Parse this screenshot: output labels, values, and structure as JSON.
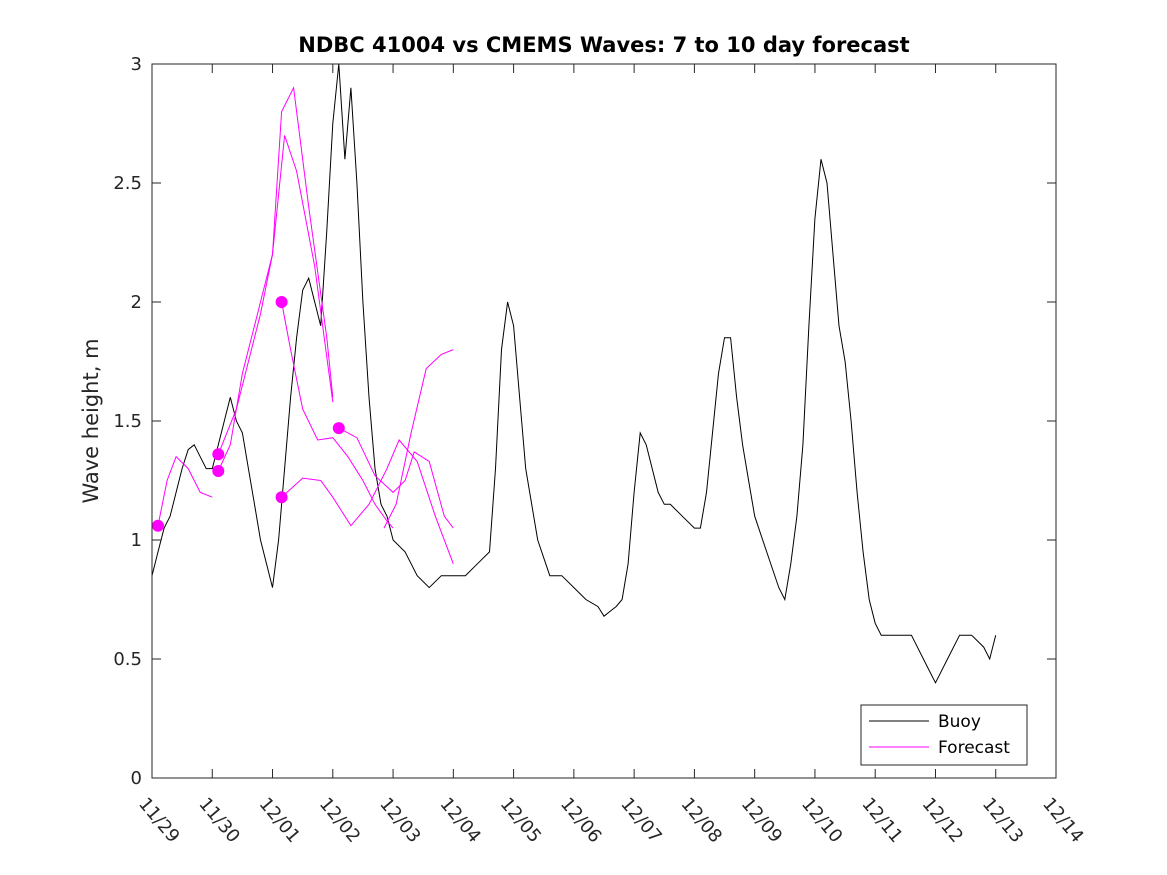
{
  "chart_data": {
    "type": "line",
    "title": "NDBC 41004 vs CMEMS Waves: 7 to 10 day forecast",
    "xlabel": "",
    "ylabel": "Wave height, m",
    "xlim": [
      0,
      15
    ],
    "ylim": [
      0,
      3
    ],
    "x_ticks": [
      0,
      1,
      2,
      3,
      4,
      5,
      6,
      7,
      8,
      9,
      10,
      11,
      12,
      13,
      14,
      15
    ],
    "x_tick_labels": [
      "11/29",
      "11/30",
      "12/01",
      "12/02",
      "12/03",
      "12/04",
      "12/05",
      "12/06",
      "12/07",
      "12/08",
      "12/09",
      "12/10",
      "12/11",
      "12/12",
      "12/13",
      "12/14"
    ],
    "y_ticks": [
      0,
      0.5,
      1,
      1.5,
      2,
      2.5,
      3
    ],
    "y_tick_labels": [
      "0",
      "0.5",
      "1",
      "1.5",
      "2",
      "2.5",
      "3"
    ],
    "legend": {
      "position": "bottom-right",
      "entries": [
        "Buoy",
        "Forecast"
      ]
    },
    "colors": {
      "buoy": "#000000",
      "forecast": "#ff00ff"
    },
    "series": [
      {
        "name": "Buoy",
        "color": "#000000",
        "x": [
          0,
          0.1,
          0.2,
          0.3,
          0.4,
          0.5,
          0.6,
          0.7,
          0.8,
          0.9,
          1.0,
          1.1,
          1.2,
          1.3,
          1.4,
          1.5,
          1.6,
          1.7,
          1.8,
          1.9,
          2.0,
          2.1,
          2.2,
          2.3,
          2.4,
          2.5,
          2.6,
          2.7,
          2.8,
          2.9,
          3.0,
          3.1,
          3.2,
          3.3,
          3.4,
          3.5,
          3.6,
          3.7,
          3.8,
          3.9,
          4.0,
          4.2,
          4.4,
          4.6,
          4.8,
          5.0,
          5.2,
          5.4,
          5.6,
          5.7,
          5.8,
          5.9,
          6.0,
          6.1,
          6.2,
          6.4,
          6.6,
          6.8,
          7.0,
          7.2,
          7.4,
          7.5,
          7.6,
          7.7,
          7.8,
          7.9,
          8.0,
          8.1,
          8.2,
          8.3,
          8.4,
          8.5,
          8.6,
          8.8,
          9.0,
          9.1,
          9.2,
          9.3,
          9.4,
          9.5,
          9.6,
          9.7,
          9.8,
          9.9,
          10.0,
          10.2,
          10.4,
          10.5,
          10.6,
          10.7,
          10.8,
          10.9,
          11.0,
          11.1,
          11.2,
          11.3,
          11.4,
          11.5,
          11.6,
          11.7,
          11.8,
          11.9,
          12.0,
          12.1,
          12.2,
          12.4,
          12.6,
          12.8,
          12.9,
          13.0,
          13.2,
          13.4,
          13.6,
          13.8,
          13.9,
          14.0
        ],
        "values": [
          0.85,
          0.95,
          1.05,
          1.1,
          1.2,
          1.3,
          1.38,
          1.4,
          1.35,
          1.3,
          1.3,
          1.4,
          1.5,
          1.6,
          1.5,
          1.45,
          1.3,
          1.15,
          1.0,
          0.9,
          0.8,
          1.0,
          1.3,
          1.6,
          1.85,
          2.05,
          2.1,
          2.0,
          1.9,
          2.3,
          2.75,
          3.0,
          2.6,
          2.9,
          2.5,
          2.0,
          1.6,
          1.3,
          1.15,
          1.1,
          1.0,
          0.95,
          0.85,
          0.8,
          0.85,
          0.85,
          0.85,
          0.9,
          0.95,
          1.3,
          1.8,
          2.0,
          1.9,
          1.6,
          1.3,
          1.0,
          0.85,
          0.85,
          0.8,
          0.75,
          0.72,
          0.68,
          0.7,
          0.72,
          0.75,
          0.9,
          1.2,
          1.45,
          1.4,
          1.3,
          1.2,
          1.15,
          1.15,
          1.1,
          1.05,
          1.05,
          1.2,
          1.45,
          1.7,
          1.85,
          1.85,
          1.6,
          1.4,
          1.25,
          1.1,
          0.95,
          0.8,
          0.75,
          0.9,
          1.1,
          1.4,
          1.9,
          2.35,
          2.6,
          2.5,
          2.2,
          1.9,
          1.75,
          1.5,
          1.2,
          0.95,
          0.75,
          0.65,
          0.6,
          0.6,
          0.6,
          0.6,
          0.5,
          0.45,
          0.4,
          0.5,
          0.6,
          0.6,
          0.55,
          0.5,
          0.6
        ]
      },
      {
        "name": "Forecast",
        "color": "#ff00ff",
        "start_marker": true,
        "x": [
          0.1,
          0.25,
          0.4,
          0.6,
          0.8,
          1.0
        ],
        "values": [
          1.06,
          1.25,
          1.35,
          1.3,
          1.2,
          1.18
        ]
      },
      {
        "name": "Forecast",
        "color": "#ff00ff",
        "start_marker": true,
        "x": [
          1.1,
          1.3,
          1.5,
          1.75,
          2.0,
          2.2,
          2.4,
          2.7,
          3.0
        ],
        "values": [
          1.29,
          1.4,
          1.7,
          1.95,
          2.2,
          2.7,
          2.55,
          2.15,
          1.58
        ]
      },
      {
        "name": "Forecast",
        "color": "#ff00ff",
        "start_marker": true,
        "x": [
          1.1,
          1.4,
          1.8,
          2.0,
          2.15,
          2.35,
          2.6,
          2.9,
          3.0
        ],
        "values": [
          1.36,
          1.55,
          1.95,
          2.2,
          2.8,
          2.9,
          2.4,
          1.85,
          1.6
        ]
      },
      {
        "name": "Forecast",
        "color": "#ff00ff",
        "start_marker": true,
        "x": [
          2.15,
          2.3,
          2.5,
          2.75,
          3.0,
          3.25,
          3.5,
          3.7,
          3.9,
          4.0
        ],
        "values": [
          2.0,
          1.8,
          1.55,
          1.42,
          1.43,
          1.35,
          1.25,
          1.15,
          1.08,
          1.05
        ]
      },
      {
        "name": "Forecast",
        "color": "#ff00ff",
        "start_marker": true,
        "x": [
          2.15,
          2.5,
          2.8,
          3.0,
          3.3,
          3.6,
          3.9,
          4.1,
          4.4,
          4.7,
          5.0
        ],
        "values": [
          1.18,
          1.26,
          1.25,
          1.18,
          1.06,
          1.15,
          1.3,
          1.42,
          1.33,
          1.1,
          0.9
        ]
      },
      {
        "name": "Forecast",
        "color": "#ff00ff",
        "start_marker": true,
        "x": [
          3.1,
          3.4,
          3.7,
          4.0,
          4.2,
          4.35,
          4.6,
          4.85,
          5.0
        ],
        "values": [
          1.47,
          1.43,
          1.27,
          1.2,
          1.25,
          1.37,
          1.33,
          1.1,
          1.05
        ]
      },
      {
        "name": "Forecast",
        "color": "#ff00ff",
        "start_marker": false,
        "x": [
          3.85,
          4.05,
          4.3,
          4.55,
          4.8,
          5.0
        ],
        "values": [
          1.05,
          1.15,
          1.45,
          1.72,
          1.78,
          1.8
        ]
      }
    ]
  }
}
